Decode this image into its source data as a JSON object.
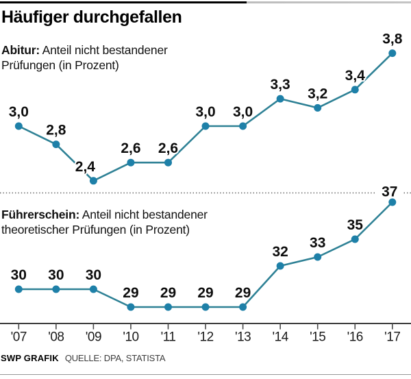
{
  "meta": {
    "title": "Häufiger durchgefallen",
    "source_label": "SWP GRAFIK",
    "source_text": "QUELLE: DPA, STATISTA"
  },
  "colors": {
    "line": "#2e8195",
    "dot": "#1e80a8",
    "label_text": "#0d0d0d",
    "axis": "#3d3d3d",
    "separator": "#5a5a5a",
    "top_border_black": "#000000",
    "top_border_gray": "#c4c4c4",
    "bottom_rule": "#979797"
  },
  "chart_data": [
    {
      "type": "line",
      "name": "abitur",
      "title_bold": "Abitur:",
      "title_rest": " Anteil nicht bestandener",
      "title_line2": "Prüfungen (in Prozent)",
      "categories": [
        "'07",
        "'08",
        "'09",
        "'10",
        "'11",
        "'12",
        "'13",
        "'14",
        "'15",
        "'16",
        "'17"
      ],
      "values": [
        3.0,
        2.8,
        2.4,
        2.6,
        2.6,
        3.0,
        3.0,
        3.3,
        3.2,
        3.4,
        3.8
      ],
      "labels": [
        "3,0",
        "2,8",
        "2,4",
        "2,6",
        "2,6",
        "3,0",
        "3,0",
        "3,3",
        "3,2",
        "3,4",
        "3,8"
      ],
      "ylim": [
        2.2,
        4.0
      ],
      "grid": false,
      "legend": "none"
    },
    {
      "type": "line",
      "name": "fuehrerschein",
      "title_bold": "Führerschein:",
      "title_rest": " Anteil nicht bestandener",
      "title_line2": "theoretischer Prüfungen (in Prozent)",
      "categories": [
        "'07",
        "'08",
        "'09",
        "'10",
        "'11",
        "'12",
        "'13",
        "'14",
        "'15",
        "'16",
        "'17"
      ],
      "values": [
        30,
        30,
        30,
        29,
        29,
        29,
        29,
        32,
        33,
        35,
        37
      ],
      "labels": [
        "30",
        "30",
        "30",
        "29",
        "29",
        "29",
        "29",
        "32",
        "33",
        "35",
        "37"
      ],
      "ylim": [
        27,
        38
      ],
      "grid": false,
      "legend": "none"
    }
  ]
}
